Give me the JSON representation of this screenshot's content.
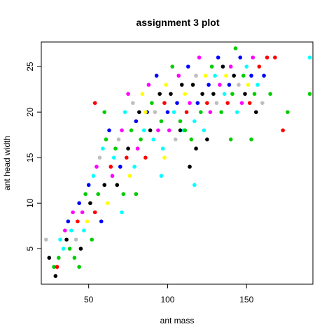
{
  "chart_data": {
    "type": "scatter",
    "title": "assignment 3 plot",
    "xlabel": "ant mass",
    "ylabel": "ant head width",
    "xlim": [
      20,
      192
    ],
    "ylim": [
      1.1,
      27.7
    ],
    "x_ticks": [
      50,
      100,
      150
    ],
    "x_tick_labels": [
      "50",
      "100",
      "150"
    ],
    "y_ticks": [
      5,
      10,
      15,
      20,
      25
    ],
    "y_tick_labels": [
      "5",
      "10",
      "15",
      "20",
      "25"
    ],
    "grid": false,
    "legend": "none",
    "point_colors": [
      "#000000",
      "#ff0000",
      "#00cd00",
      "#0000ff",
      "#00ffff",
      "#ff00ff",
      "#ffff00",
      "#bebebe"
    ],
    "points": [
      [
        23,
        6,
        7
      ],
      [
        25,
        4,
        0
      ],
      [
        28,
        3,
        2
      ],
      [
        29,
        2,
        0
      ],
      [
        30,
        3,
        1
      ],
      [
        31,
        4,
        2
      ],
      [
        32,
        6,
        4
      ],
      [
        34,
        5,
        4
      ],
      [
        35,
        7,
        5
      ],
      [
        36,
        6,
        0
      ],
      [
        37,
        8,
        3
      ],
      [
        38,
        5,
        2
      ],
      [
        39,
        7,
        4
      ],
      [
        40,
        9,
        5
      ],
      [
        41,
        4,
        2
      ],
      [
        42,
        6,
        7
      ],
      [
        43,
        8,
        1
      ],
      [
        44,
        10,
        3
      ],
      [
        44,
        3,
        2
      ],
      [
        45,
        5,
        0
      ],
      [
        46,
        9,
        5
      ],
      [
        47,
        7,
        4
      ],
      [
        48,
        11,
        2
      ],
      [
        49,
        8,
        6
      ],
      [
        50,
        12,
        3
      ],
      [
        51,
        10,
        0
      ],
      [
        52,
        6,
        2
      ],
      [
        53,
        13,
        4
      ],
      [
        54,
        9,
        1
      ],
      [
        55,
        14,
        5
      ],
      [
        56,
        11,
        2
      ],
      [
        57,
        15,
        7
      ],
      [
        58,
        8,
        3
      ],
      [
        59,
        16,
        4
      ],
      [
        60,
        12,
        0
      ],
      [
        61,
        17,
        2
      ],
      [
        62,
        10,
        6
      ],
      [
        63,
        18,
        3
      ],
      [
        64,
        14,
        1
      ],
      [
        65,
        13,
        5
      ],
      [
        66,
        15,
        4
      ],
      [
        67,
        16,
        2
      ],
      [
        68,
        12,
        0
      ],
      [
        69,
        17,
        7
      ],
      [
        70,
        14,
        3
      ],
      [
        71,
        18,
        5
      ],
      [
        72,
        11,
        2
      ],
      [
        73,
        20,
        4
      ],
      [
        74,
        15,
        1
      ],
      [
        75,
        16,
        0
      ],
      [
        76,
        13,
        6
      ],
      [
        77,
        18,
        2
      ],
      [
        78,
        21,
        7
      ],
      [
        79,
        14,
        4
      ],
      [
        80,
        19,
        3
      ],
      [
        81,
        16,
        5
      ],
      [
        82,
        20,
        0
      ],
      [
        83,
        17,
        2
      ],
      [
        84,
        22,
        6
      ],
      [
        85,
        18,
        4
      ],
      [
        86,
        15,
        1
      ],
      [
        87,
        20,
        3
      ],
      [
        88,
        23,
        5
      ],
      [
        89,
        18,
        0
      ],
      [
        90,
        21,
        2
      ],
      [
        91,
        17,
        4
      ],
      [
        92,
        20,
        7
      ],
      [
        93,
        24,
        3
      ],
      [
        94,
        18,
        5
      ],
      [
        95,
        22,
        0
      ],
      [
        96,
        19,
        2
      ],
      [
        97,
        16,
        4
      ],
      [
        98,
        21,
        1
      ],
      [
        99,
        23,
        6
      ],
      [
        100,
        20,
        3
      ],
      [
        101,
        18,
        5
      ],
      [
        102,
        22,
        0
      ],
      [
        103,
        25,
        2
      ],
      [
        104,
        20,
        4
      ],
      [
        105,
        17,
        7
      ],
      [
        106,
        21,
        3
      ],
      [
        107,
        24,
        5
      ],
      [
        108,
        19,
        2
      ],
      [
        109,
        23,
        0
      ],
      [
        110,
        18,
        4
      ],
      [
        111,
        22,
        6
      ],
      [
        112,
        20,
        1
      ],
      [
        113,
        25,
        3
      ],
      [
        114,
        21,
        5
      ],
      [
        115,
        17,
        2
      ],
      [
        116,
        23,
        0
      ],
      [
        117,
        19,
        4
      ],
      [
        118,
        24,
        7
      ],
      [
        119,
        21,
        3
      ],
      [
        120,
        26,
        5
      ],
      [
        121,
        20,
        2
      ],
      [
        122,
        22,
        0
      ],
      [
        123,
        18,
        4
      ],
      [
        124,
        24,
        6
      ],
      [
        125,
        21,
        1
      ],
      [
        126,
        23,
        3
      ],
      [
        127,
        20,
        5
      ],
      [
        128,
        25,
        2
      ],
      [
        129,
        22,
        0
      ],
      [
        130,
        24,
        4
      ],
      [
        131,
        21,
        7
      ],
      [
        132,
        26,
        3
      ],
      [
        133,
        23,
        5
      ],
      [
        134,
        20,
        2
      ],
      [
        135,
        25,
        0
      ],
      [
        136,
        22,
        4
      ],
      [
        137,
        24,
        6
      ],
      [
        138,
        21,
        1
      ],
      [
        139,
        23,
        3
      ],
      [
        140,
        25,
        5
      ],
      [
        141,
        22,
        2
      ],
      [
        142,
        24,
        0
      ],
      [
        143,
        27,
        2
      ],
      [
        144,
        20,
        4
      ],
      [
        145,
        23,
        7
      ],
      [
        146,
        26,
        3
      ],
      [
        147,
        21,
        5
      ],
      [
        148,
        24,
        2
      ],
      [
        149,
        22,
        0
      ],
      [
        150,
        25,
        4
      ],
      [
        151,
        23,
        6
      ],
      [
        152,
        21,
        1
      ],
      [
        153,
        24,
        3
      ],
      [
        154,
        26,
        5
      ],
      [
        155,
        22,
        2
      ],
      [
        156,
        20,
        0
      ],
      [
        157,
        23,
        4
      ],
      [
        158,
        25,
        1
      ],
      [
        160,
        21,
        7
      ],
      [
        161,
        24,
        3
      ],
      [
        163,
        26,
        1
      ],
      [
        165,
        22,
        2
      ],
      [
        168,
        26,
        1
      ],
      [
        173,
        18,
        1
      ],
      [
        176,
        20,
        2
      ],
      [
        190,
        26,
        4
      ],
      [
        190,
        22,
        2
      ],
      [
        54,
        21,
        1
      ],
      [
        60,
        20,
        2
      ],
      [
        75,
        22,
        5
      ],
      [
        86,
        20,
        6
      ],
      [
        117,
        12,
        4
      ],
      [
        125,
        17,
        0
      ],
      [
        140,
        17,
        2
      ],
      [
        153,
        17,
        2
      ],
      [
        71,
        9,
        4
      ],
      [
        80,
        11,
        2
      ],
      [
        96,
        13,
        4
      ],
      [
        98,
        15,
        6
      ],
      [
        108,
        18,
        0
      ],
      [
        111,
        18,
        2
      ],
      [
        114,
        14,
        0
      ],
      [
        118,
        16,
        0
      ]
    ]
  }
}
